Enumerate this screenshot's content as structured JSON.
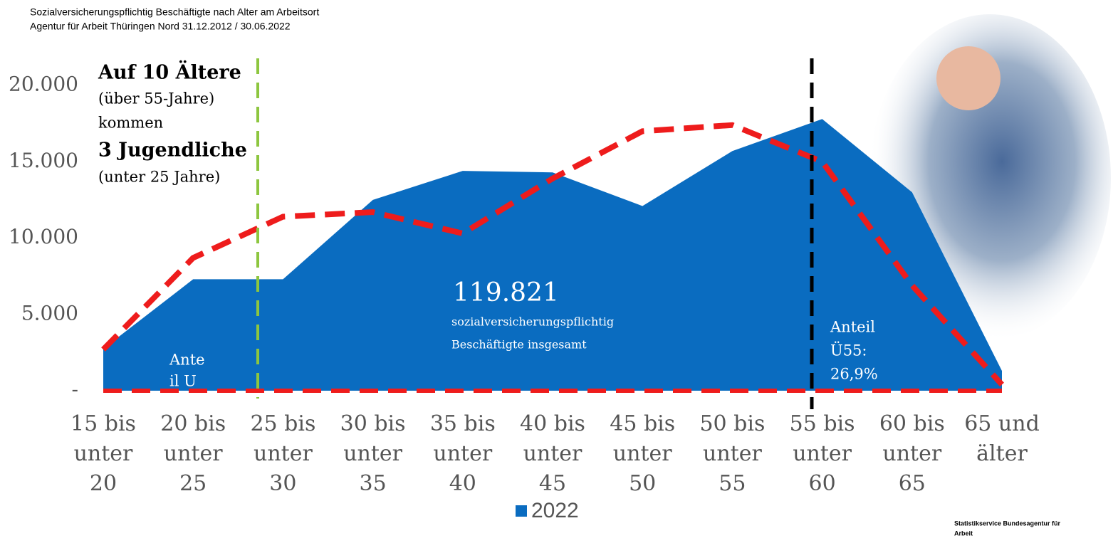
{
  "chart_data": {
    "type": "area",
    "title": "Sozialversicherungspflichtig Beschäftigte nach Alter am Arbeitsort",
    "subtitle": "Agentur für Arbeit Thüringen Nord 31.12.2012 /  30.06.2022",
    "categories": [
      [
        "15 bis",
        "unter",
        "20"
      ],
      [
        "20 bis",
        "unter",
        "25"
      ],
      [
        "25 bis",
        "unter",
        "30"
      ],
      [
        "30 bis",
        "unter",
        "35"
      ],
      [
        "35 bis",
        "unter",
        "40"
      ],
      [
        "40 bis",
        "unter",
        "45"
      ],
      [
        "45 bis",
        "unter",
        "50"
      ],
      [
        "50 bis",
        "unter",
        "55"
      ],
      [
        "55 bis",
        "unter",
        "60"
      ],
      [
        "60 bis",
        "unter",
        "65"
      ],
      [
        "65 und",
        "älter"
      ]
    ],
    "series": [
      {
        "name": "2022",
        "color": "#0a6cc0",
        "values": [
          2750,
          7300,
          7300,
          12500,
          14400,
          14300,
          12100,
          15700,
          17800,
          13000,
          1300
        ]
      },
      {
        "color": "#ee1c1c",
        "values": [
          2700,
          8700,
          11400,
          11700,
          10300,
          13900,
          17000,
          17400,
          15000,
          6900,
          400
        ]
      }
    ],
    "ylim": [
      0,
      20000
    ],
    "yticks": [
      {
        "value": 0,
        "label": "-"
      },
      {
        "value": 5000,
        "label": "5.000"
      },
      {
        "value": 10000,
        "label": "10.000"
      },
      {
        "value": 15000,
        "label": "15.000"
      },
      {
        "value": 20000,
        "label": "20.000"
      }
    ],
    "annotations": {
      "ratio": [
        "Auf 10 Ältere",
        "(über 55-Jahre)",
        "kommen",
        "3 Jugendliche",
        "(unter 25 Jahre)"
      ],
      "young": [
        "Ante",
        "il U"
      ],
      "total": "119.821",
      "total_text": [
        "sozialversicherungspflichtig",
        "Beschäftigte insgesamt"
      ],
      "old": [
        "Anteil",
        "Ü55:",
        "26,9%"
      ]
    },
    "source": [
      "Statistikservice Bundesagentur für",
      "Arbeit"
    ]
  }
}
